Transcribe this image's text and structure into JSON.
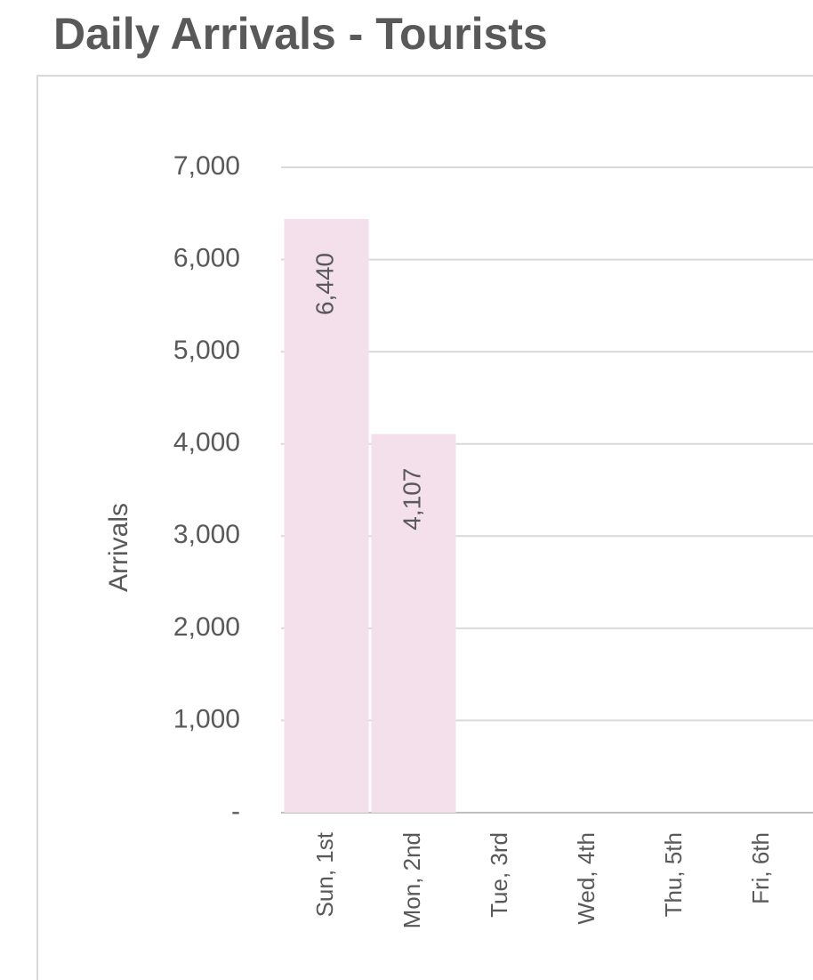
{
  "chart_data": {
    "type": "bar",
    "title": "Daily Arrivals - Tourists",
    "y_label": "Arrivals",
    "categories": [
      "Sun, 1st",
      "Mon, 2nd",
      "Tue, 3rd",
      "Wed, 4th",
      "Thu, 5th",
      "Fri, 6th"
    ],
    "values": [
      6440,
      4107,
      null,
      null,
      null,
      null
    ],
    "value_labels": [
      "6,440",
      "4,107",
      null,
      null,
      null,
      null
    ],
    "color": "#f3e0ea",
    "ylim": [
      0,
      7000
    ],
    "yticks": [
      {
        "value": 0,
        "label": "-"
      },
      {
        "value": 1000,
        "label": "1,000"
      },
      {
        "value": 2000,
        "label": "2,000"
      },
      {
        "value": 3000,
        "label": "3,000"
      },
      {
        "value": 4000,
        "label": "4,000"
      },
      {
        "value": 5000,
        "label": "5,000"
      },
      {
        "value": 6000,
        "label": "6,000"
      },
      {
        "value": 7000,
        "label": "7,000"
      }
    ],
    "grid": true
  }
}
